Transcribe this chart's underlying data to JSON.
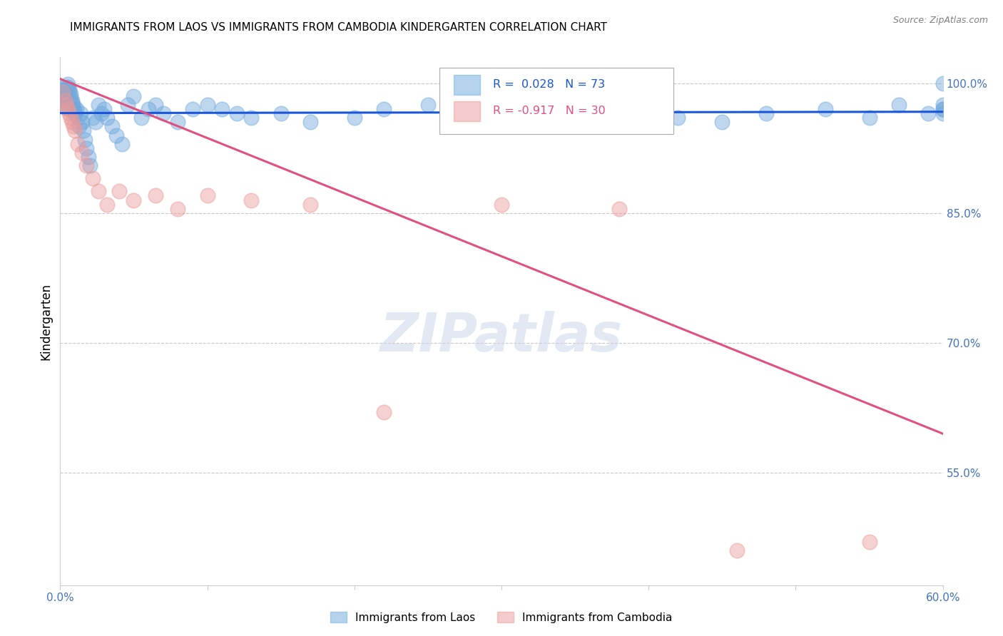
{
  "title": "IMMIGRANTS FROM LAOS VS IMMIGRANTS FROM CAMBODIA KINDERGARTEN CORRELATION CHART",
  "source": "Source: ZipAtlas.com",
  "ylabel": "Kindergarten",
  "xlim": [
    0.0,
    0.6
  ],
  "ylim": [
    0.42,
    1.03
  ],
  "yticks_right": [
    1.0,
    0.85,
    0.7,
    0.55
  ],
  "ytick_right_labels": [
    "100.0%",
    "85.0%",
    "70.0%",
    "55.0%"
  ],
  "background_color": "#ffffff",
  "grid_color": "#c8c8c8",
  "watermark": "ZIPatlas",
  "laos_color": "#6fa8dc",
  "cambodia_color": "#ea9999",
  "laos_line_color": "#1a56db",
  "cambodia_line_color": "#e05080",
  "laos_scatter_x": [
    0.001,
    0.002,
    0.002,
    0.003,
    0.003,
    0.003,
    0.004,
    0.004,
    0.005,
    0.005,
    0.006,
    0.006,
    0.007,
    0.007,
    0.008,
    0.008,
    0.009,
    0.009,
    0.01,
    0.01,
    0.011,
    0.012,
    0.013,
    0.014,
    0.015,
    0.016,
    0.017,
    0.018,
    0.019,
    0.02,
    0.022,
    0.024,
    0.026,
    0.028,
    0.03,
    0.032,
    0.035,
    0.038,
    0.042,
    0.046,
    0.05,
    0.055,
    0.06,
    0.065,
    0.07,
    0.08,
    0.09,
    0.1,
    0.11,
    0.12,
    0.13,
    0.15,
    0.17,
    0.2,
    0.22,
    0.25,
    0.28,
    0.31,
    0.33,
    0.36,
    0.39,
    0.42,
    0.45,
    0.48,
    0.52,
    0.55,
    0.57,
    0.59,
    0.6,
    0.6,
    0.6,
    0.6,
    0.6
  ],
  "laos_scatter_y": [
    0.995,
    0.992,
    0.988,
    0.985,
    0.982,
    0.978,
    0.975,
    0.972,
    0.999,
    0.996,
    0.993,
    0.99,
    0.987,
    0.983,
    0.98,
    0.977,
    0.974,
    0.97,
    0.967,
    0.964,
    0.97,
    0.96,
    0.95,
    0.965,
    0.955,
    0.945,
    0.935,
    0.925,
    0.915,
    0.905,
    0.96,
    0.955,
    0.975,
    0.965,
    0.97,
    0.96,
    0.95,
    0.94,
    0.93,
    0.975,
    0.985,
    0.96,
    0.97,
    0.975,
    0.965,
    0.955,
    0.97,
    0.975,
    0.97,
    0.965,
    0.96,
    0.965,
    0.955,
    0.96,
    0.97,
    0.975,
    0.965,
    0.955,
    0.97,
    0.965,
    0.975,
    0.96,
    0.955,
    0.965,
    0.97,
    0.96,
    0.975,
    0.965,
    0.97,
    0.975,
    0.97,
    0.965,
    1.0
  ],
  "cambodia_scatter_x": [
    0.002,
    0.003,
    0.004,
    0.005,
    0.006,
    0.007,
    0.008,
    0.009,
    0.01,
    0.012,
    0.015,
    0.018,
    0.022,
    0.026,
    0.032,
    0.04,
    0.05,
    0.065,
    0.08,
    0.1,
    0.13,
    0.17,
    0.22,
    0.3,
    0.38,
    0.46,
    0.55
  ],
  "cambodia_scatter_y": [
    0.99,
    0.98,
    0.975,
    0.97,
    0.965,
    0.96,
    0.955,
    0.95,
    0.945,
    0.93,
    0.92,
    0.905,
    0.89,
    0.875,
    0.86,
    0.875,
    0.865,
    0.87,
    0.855,
    0.87,
    0.865,
    0.86,
    0.62,
    0.86,
    0.855,
    0.46,
    0.47
  ],
  "laos_line_x": [
    0.0,
    0.6
  ],
  "laos_line_y": [
    0.9655,
    0.967
  ],
  "cambodia_line_x": [
    0.0,
    0.6
  ],
  "cambodia_line_y": [
    1.005,
    0.595
  ]
}
